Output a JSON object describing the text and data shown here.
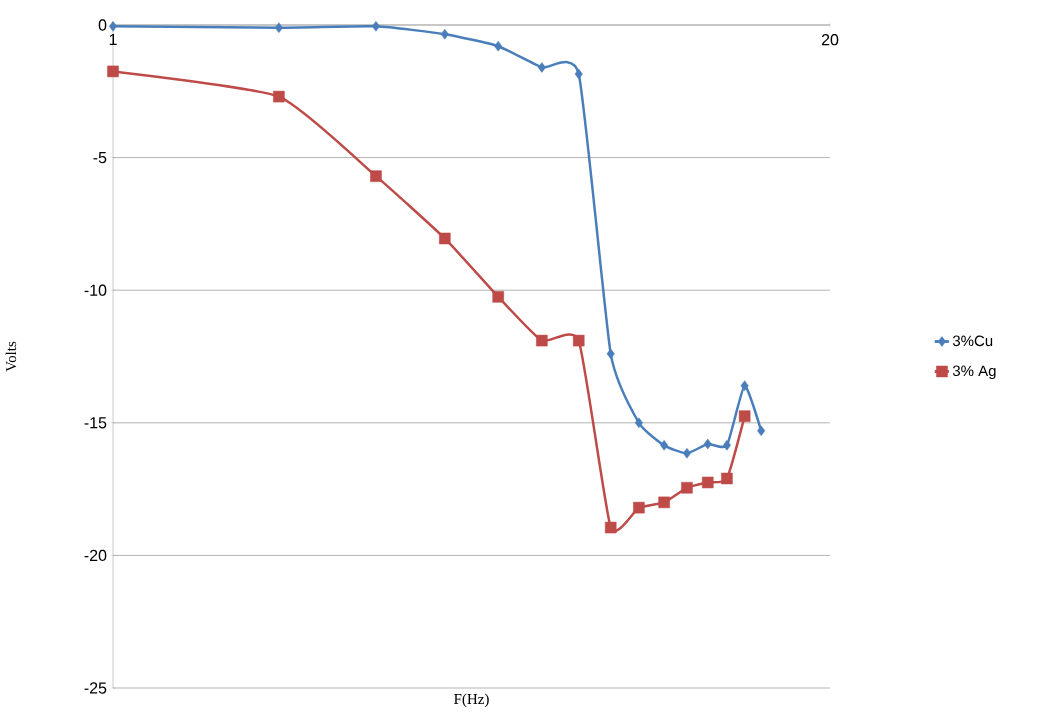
{
  "chart_data": {
    "type": "line",
    "xlabel": "F(Hz)",
    "ylabel": "Volts",
    "log": "x",
    "xlim": [
      1,
      20
    ],
    "xticks": [
      1,
      20
    ],
    "ylim": [
      -25,
      0
    ],
    "yticks": [
      0,
      -5,
      -10,
      -15,
      -20,
      -25
    ],
    "grid": "y",
    "legend": "right",
    "line_style": "solid",
    "series": [
      {
        "name": "3%Cu",
        "color": "#4a7ebb",
        "marker": "diamond",
        "x": [
          1,
          2,
          3,
          4,
          5,
          6,
          7,
          8,
          9,
          10,
          11,
          12,
          13,
          14,
          15
        ],
        "values": [
          -0.05,
          -0.1,
          -0.05,
          -0.35,
          -0.8,
          -1.6,
          -1.85,
          -12.4,
          -15.0,
          -15.85,
          -16.15,
          -15.8,
          -15.85,
          -13.6,
          -15.3
        ]
      },
      {
        "name": "3% Ag",
        "color": "#be4b48",
        "marker": "square",
        "x": [
          1,
          2,
          3,
          4,
          5,
          6,
          7,
          8,
          9,
          10,
          11,
          12,
          13,
          14
        ],
        "values": [
          -1.75,
          -2.7,
          -5.7,
          -8.05,
          -10.25,
          -11.9,
          -11.9,
          -18.95,
          -18.2,
          -18.0,
          -17.45,
          -17.25,
          -17.1,
          -14.75
        ]
      }
    ]
  }
}
